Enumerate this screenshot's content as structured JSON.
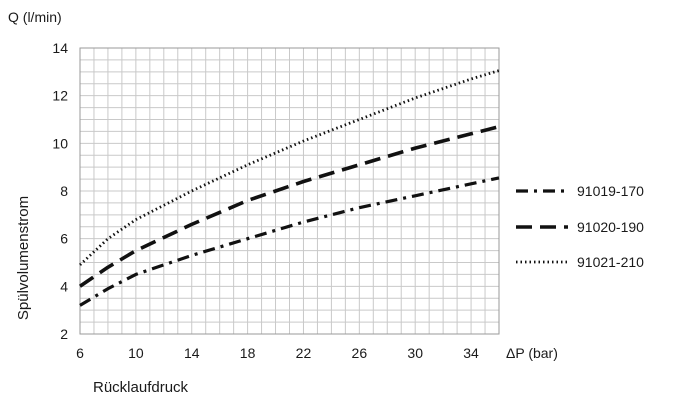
{
  "chart_data": {
    "type": "line",
    "y_unit_label": "Q (l/min)",
    "x_unit_label": "ΔP (bar)",
    "ylabel": "Spülvolumenstrom",
    "xlabel": "Rücklaufdruck",
    "xlim": [
      6,
      36
    ],
    "ylim": [
      2,
      14
    ],
    "grid": true,
    "x_ticks": [
      6,
      10,
      14,
      18,
      22,
      26,
      30,
      34
    ],
    "y_ticks": [
      2,
      4,
      6,
      8,
      10,
      12,
      14
    ],
    "legend_position": "right",
    "series": [
      {
        "name": "91019-170",
        "line_style": "dash-dot",
        "color": "#111111",
        "x": [
          6,
          8,
          10,
          14,
          18,
          22,
          26,
          30,
          34,
          36
        ],
        "y": [
          3.2,
          3.9,
          4.5,
          5.3,
          6.0,
          6.7,
          7.3,
          7.8,
          8.3,
          8.55
        ]
      },
      {
        "name": "91020-190",
        "line_style": "dashed",
        "color": "#111111",
        "x": [
          6,
          8,
          10,
          14,
          18,
          22,
          26,
          30,
          34,
          36
        ],
        "y": [
          4.0,
          4.8,
          5.5,
          6.6,
          7.6,
          8.4,
          9.1,
          9.8,
          10.4,
          10.7
        ]
      },
      {
        "name": "91021-210",
        "line_style": "dotted",
        "color": "#111111",
        "x": [
          6,
          8,
          10,
          14,
          18,
          22,
          26,
          30,
          34,
          36
        ],
        "y": [
          4.9,
          6.0,
          6.8,
          8.0,
          9.1,
          10.1,
          11.0,
          11.9,
          12.7,
          13.05
        ]
      }
    ]
  }
}
